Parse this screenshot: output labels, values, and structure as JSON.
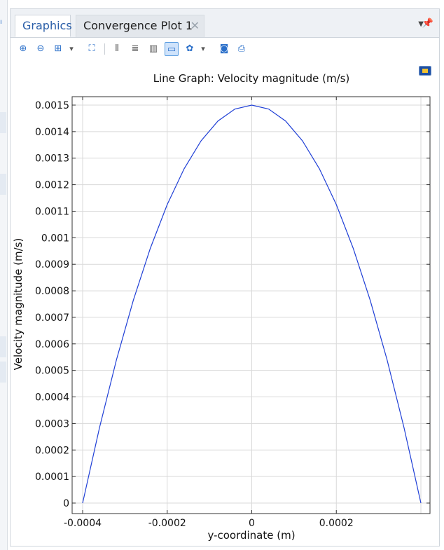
{
  "tabs": [
    {
      "label": "Graphics",
      "active": true
    },
    {
      "label": "Convergence Plot 1",
      "active": false,
      "close_glyph": "✕"
    }
  ],
  "toolbar": {
    "buttons": [
      {
        "name": "zoom-in-icon",
        "glyph": "⊕"
      },
      {
        "name": "zoom-out-icon",
        "glyph": "⊖"
      },
      {
        "name": "zoom-box-icon",
        "glyph": "⊞"
      },
      {
        "name": "zoom-menu-arrow-icon",
        "glyph": "▾"
      },
      {
        "name": "zoom-extents-icon",
        "glyph": "⛶"
      },
      {
        "name": "x-grid-icon",
        "glyph": "⦀"
      },
      {
        "name": "y-grid-icon",
        "glyph": "≣"
      },
      {
        "name": "legend-icon",
        "glyph": "▥"
      },
      {
        "name": "show-annotations-icon",
        "glyph": "▭"
      },
      {
        "name": "scene-light-icon",
        "glyph": "✿"
      },
      {
        "name": "scene-light-menu-arrow-icon",
        "glyph": "▾"
      },
      {
        "name": "camera-icon",
        "glyph": "◙"
      },
      {
        "name": "print-icon",
        "glyph": "⎙"
      }
    ]
  },
  "chart_data": {
    "type": "line",
    "title": "Line Graph: Velocity magnitude (m/s)",
    "xlabel": "y-coordinate (m)",
    "ylabel": "Velocity magnitude (m/s)",
    "xlim": [
      -0.0004,
      0.0004
    ],
    "ylim": [
      0,
      0.0015
    ],
    "xticks": [
      -0.0004,
      -0.0002,
      0,
      0.0002
    ],
    "xtick_labels": [
      "-0.0004",
      "-0.0002",
      "0",
      "0.0002"
    ],
    "yticks": [
      0,
      0.0001,
      0.0002,
      0.0003,
      0.0004,
      0.0005,
      0.0006,
      0.0007,
      0.0008,
      0.0009,
      0.001,
      0.0011,
      0.0012,
      0.0013,
      0.0014,
      0.0015
    ],
    "ytick_labels": [
      "0",
      "0.0001",
      "0.0002",
      "0.0003",
      "0.0004",
      "0.0005",
      "0.0006",
      "0.0007",
      "0.0008",
      "0.0009",
      "0.001",
      "0.0011",
      "0.0012",
      "0.0013",
      "0.0014",
      "0.0015"
    ],
    "grid": true,
    "color": "#1f3fd6",
    "series": [
      {
        "x": [
          -0.0004,
          -0.00036,
          -0.00032,
          -0.00028,
          -0.00024,
          -0.0002,
          -0.00016,
          -0.00012,
          -8e-05,
          -4e-05,
          0,
          4e-05,
          8e-05,
          0.00012,
          0.00016,
          0.0002,
          0.00024,
          0.00028,
          0.00032,
          0.00036,
          0.0004
        ],
        "values": [
          0,
          0.000285,
          0.00054,
          0.000765,
          0.00096,
          0.001125,
          0.00126,
          0.001365,
          0.00144,
          0.001485,
          0.0015,
          0.001485,
          0.00144,
          0.001365,
          0.00126,
          0.001125,
          0.00096,
          0.000765,
          0.00054,
          0.000285,
          0
        ]
      }
    ]
  }
}
